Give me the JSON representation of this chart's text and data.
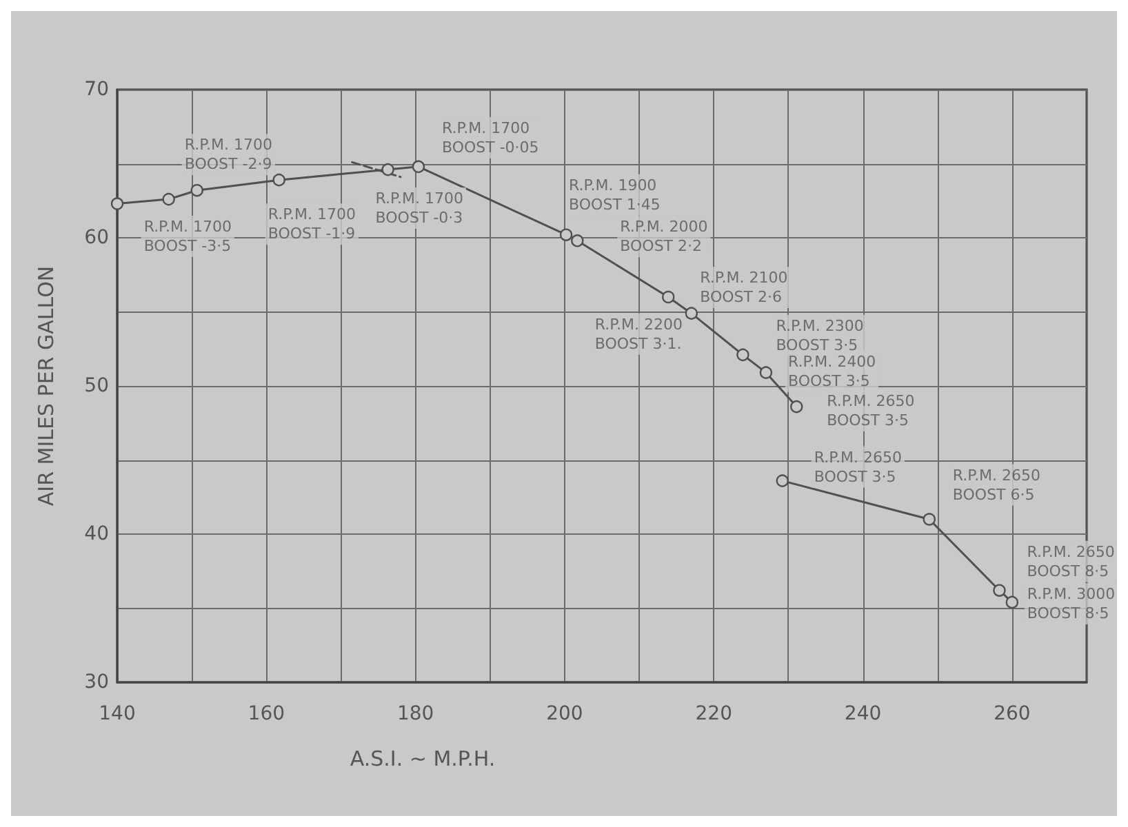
{
  "chart_data": {
    "type": "line",
    "xlabel": "A.S.I. ~ M.P.H.",
    "ylabel": "AIR MILES PER GALLON",
    "xlim": [
      140,
      270
    ],
    "ylim": [
      30,
      70
    ],
    "xticks": [
      140,
      {
        "value": 150,
        "label": null
      },
      160,
      {
        "value": 170,
        "label": null
      },
      180,
      {
        "value": 190,
        "label": null
      },
      200,
      {
        "value": 210,
        "label": null
      },
      220,
      {
        "value": 230,
        "label": null
      },
      240,
      {
        "value": 250,
        "label": null
      },
      260,
      {
        "value": 270,
        "label": null
      }
    ],
    "yticks": [
      30,
      {
        "value": 35,
        "label": null
      },
      40,
      {
        "value": 45,
        "label": null
      },
      50,
      {
        "value": 55,
        "label": null
      },
      60,
      {
        "value": 65,
        "label": null
      },
      70
    ],
    "grid": true,
    "marker": "circle",
    "line_style": "solid",
    "series": [
      {
        "color": "#505050",
        "x": [
          140,
          146.9,
          150.7,
          161.7,
          176.3,
          180.4,
          200.2,
          201.7,
          213.9,
          217.0,
          223.9,
          227.0,
          231.1
        ],
        "values": [
          62.3,
          62.6,
          63.2,
          63.9,
          64.6,
          64.8,
          60.2,
          59.8,
          56.0,
          54.9,
          52.1,
          50.9,
          48.6
        ]
      },
      {
        "color": "#505050",
        "x": [
          229.2,
          248.9,
          258.3,
          260.0
        ],
        "values": [
          43.6,
          41.0,
          36.2,
          35.4
        ]
      },
      {
        "color": "#505050",
        "x": [
          171.5,
          178
        ],
        "values": [
          65.1,
          64.1
        ],
        "line_style": "dashed",
        "marker": "none"
      }
    ],
    "annotations": [
      {
        "text": "R.P.M. 1700\nBOOST -3·5",
        "x": 146.9,
        "y": 62.6
      },
      {
        "text": "R.P.M. 1700\nBOOST -2·9",
        "x": 150.7,
        "y": 63.2
      },
      {
        "text": "R.P.M. 1700\nBOOST -1·9",
        "x": 161.7,
        "y": 63.9
      },
      {
        "text": "R.P.M. 1700\nBOOST -0·3",
        "x": 176.3,
        "y": 64.6
      },
      {
        "text": "R.P.M. 1700\nBOOST -0·05",
        "x": 180.4,
        "y": 64.8
      },
      {
        "text": "R.P.M. 1900\nBOOST 1·45",
        "x": 200.2,
        "y": 60.2
      },
      {
        "text": "R.P.M. 2000\nBOOST 2·2",
        "x": 201.7,
        "y": 59.8
      },
      {
        "text": "R.P.M. 2100\nBOOST 2·6",
        "x": 213.9,
        "y": 56.0
      },
      {
        "text": "R.P.M. 2200\nBOOST 3·1.",
        "x": 217.0,
        "y": 54.9
      },
      {
        "text": "R.P.M. 2300\nBOOST 3·5",
        "x": 223.9,
        "y": 52.1
      },
      {
        "text": "R.P.M. 2400\nBOOST 3·5",
        "x": 227.0,
        "y": 50.9
      },
      {
        "text": "R.P.M. 2650\nBOOST 3·5",
        "x": 231.1,
        "y": 48.6
      },
      {
        "text": "R.P.M. 2650\nBOOST 3·5",
        "x": 229.2,
        "y": 43.6
      },
      {
        "text": "R.P.M. 2650\nBOOST 6·5",
        "x": 248.9,
        "y": 41.0
      },
      {
        "text": "R.P.M. 2650\nBOOST 8·5",
        "x": 258.3,
        "y": 36.2
      },
      {
        "text": "R.P.M. 3000\nBOOST 8·5",
        "x": 260.0,
        "y": 35.4
      }
    ]
  }
}
